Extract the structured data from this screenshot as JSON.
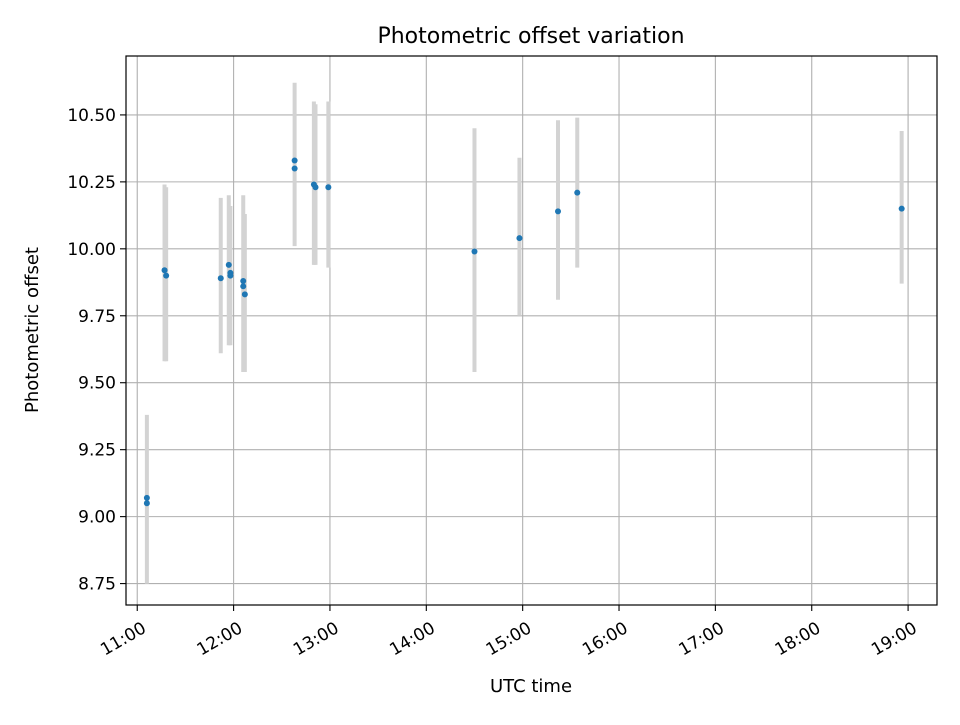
{
  "chart_data": {
    "type": "scatter",
    "title": "Photometric offset variation",
    "xlabel": "UTC time",
    "ylabel": "Photometric offset",
    "x_axis_type": "time",
    "xlim": [
      "10:53",
      "19:18"
    ],
    "ylim": [
      8.67,
      10.72
    ],
    "grid": true,
    "legend": "none",
    "colors": {
      "points": "#1f77b4",
      "errorbars": "#d3d3d3",
      "grid": "#b0b0b0",
      "axes": "#000000"
    },
    "x_ticks": [
      "11:00",
      "12:00",
      "13:00",
      "14:00",
      "15:00",
      "16:00",
      "17:00",
      "18:00",
      "19:00"
    ],
    "y_ticks": [
      "8.75",
      "9.00",
      "9.25",
      "9.50",
      "9.75",
      "10.00",
      "10.25",
      "10.50"
    ],
    "errorbars": [
      {
        "x": "11:06",
        "low": 8.75,
        "high": 9.38
      },
      {
        "x": "11:17",
        "low": 9.58,
        "high": 10.24
      },
      {
        "x": "11:18",
        "low": 9.58,
        "high": 10.23
      },
      {
        "x": "11:52",
        "low": 9.61,
        "high": 10.19
      },
      {
        "x": "11:57",
        "low": 9.64,
        "high": 10.2
      },
      {
        "x": "11:58",
        "low": 9.64,
        "high": 10.16
      },
      {
        "x": "12:06",
        "low": 9.54,
        "high": 10.2
      },
      {
        "x": "12:07",
        "low": 9.54,
        "high": 10.13
      },
      {
        "x": "12:38",
        "low": 10.01,
        "high": 10.62
      },
      {
        "x": "12:50",
        "low": 9.94,
        "high": 10.55
      },
      {
        "x": "12:51",
        "low": 9.94,
        "high": 10.54
      },
      {
        "x": "12:59",
        "low": 9.93,
        "high": 10.55
      },
      {
        "x": "14:30",
        "low": 9.54,
        "high": 10.45
      },
      {
        "x": "14:58",
        "low": 9.75,
        "high": 10.34
      },
      {
        "x": "15:22",
        "low": 9.81,
        "high": 10.48
      },
      {
        "x": "15:34",
        "low": 9.93,
        "high": 10.49
      },
      {
        "x": "18:56",
        "low": 9.87,
        "high": 10.44
      }
    ],
    "points": [
      {
        "x": "11:06",
        "y": 9.07
      },
      {
        "x": "11:06",
        "y": 9.05
      },
      {
        "x": "11:17",
        "y": 9.92
      },
      {
        "x": "11:18",
        "y": 9.9
      },
      {
        "x": "11:52",
        "y": 9.89
      },
      {
        "x": "11:57",
        "y": 9.94
      },
      {
        "x": "11:58",
        "y": 9.91
      },
      {
        "x": "11:58",
        "y": 9.9
      },
      {
        "x": "12:06",
        "y": 9.88
      },
      {
        "x": "12:06",
        "y": 9.86
      },
      {
        "x": "12:07",
        "y": 9.83
      },
      {
        "x": "12:38",
        "y": 10.33
      },
      {
        "x": "12:38",
        "y": 10.3
      },
      {
        "x": "12:50",
        "y": 10.24
      },
      {
        "x": "12:51",
        "y": 10.23
      },
      {
        "x": "12:59",
        "y": 10.23
      },
      {
        "x": "14:30",
        "y": 9.99
      },
      {
        "x": "14:58",
        "y": 10.04
      },
      {
        "x": "15:22",
        "y": 10.14
      },
      {
        "x": "15:34",
        "y": 10.21
      },
      {
        "x": "18:56",
        "y": 10.15
      }
    ]
  }
}
